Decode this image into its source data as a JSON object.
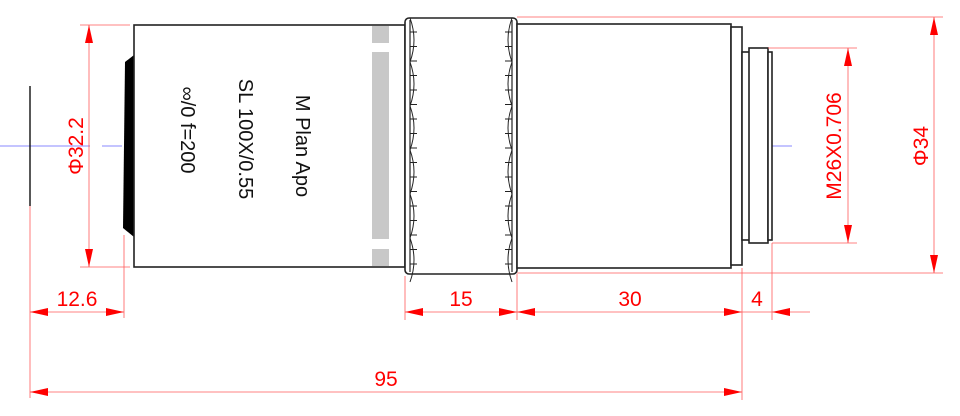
{
  "objective": {
    "labels": [
      "M Plan Apo",
      "SL 100X/0.55",
      "∞/0  f=200"
    ]
  },
  "dimensions": {
    "front_diameter": "Φ32.2",
    "working_distance": "12.6",
    "ring_length": "15",
    "body_length": "30",
    "thread_length": "4",
    "total_length": "95",
    "thread": "M26X0.706",
    "max_diameter": "Φ34"
  },
  "colors": {
    "dimension": "#ff0000",
    "axis": "#a0a0ff",
    "outline": "#222222",
    "stripe": "#c8c8c8"
  }
}
